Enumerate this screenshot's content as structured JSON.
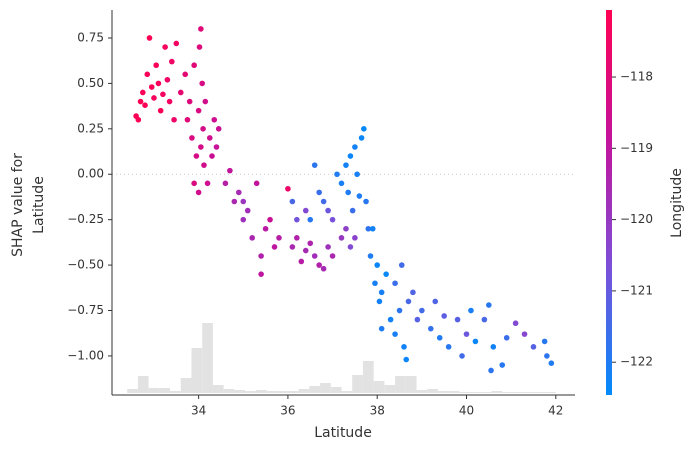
{
  "chart_data": {
    "type": "scatter",
    "xlabel": "Latitude",
    "ylabel": [
      "SHAP value for",
      "Latitude"
    ],
    "colorbar_label": "Longitude",
    "xlim": [
      32.06,
      42.43
    ],
    "ylim": [
      -1.215,
      0.904
    ],
    "xticks": [
      34,
      36,
      38,
      40,
      42
    ],
    "yticks": [
      {
        "value": 0.75,
        "label": "0.75"
      },
      {
        "value": 0.5,
        "label": "0.50"
      },
      {
        "value": 0.25,
        "label": "0.25"
      },
      {
        "value": 0,
        "label": "0.00"
      },
      {
        "value": -0.25,
        "label": "−0.25"
      },
      {
        "value": -0.5,
        "label": "−0.50"
      },
      {
        "value": -0.75,
        "label": "−0.75"
      },
      {
        "value": -1,
        "label": "−1.00"
      }
    ],
    "clim": [
      -122.46,
      -117.06
    ],
    "cticks": [
      {
        "value": -118,
        "label": "−118"
      },
      {
        "value": -119,
        "label": "−119"
      },
      {
        "value": -120,
        "label": "−120"
      },
      {
        "value": -121,
        "label": "−121"
      },
      {
        "value": -122,
        "label": "−122"
      }
    ],
    "colormap": [
      "#008bfb",
      "#7c4fd8",
      "#c4129a",
      "#ff0052"
    ],
    "x": [
      32.6,
      32.7,
      32.75,
      32.8,
      32.85,
      32.9,
      32.95,
      33.0,
      33.05,
      33.1,
      33.15,
      33.2,
      33.25,
      33.3,
      33.35,
      33.4,
      33.45,
      33.5,
      32.65,
      33.6,
      33.7,
      33.75,
      33.8,
      33.85,
      33.9,
      33.95,
      34.0,
      34.02,
      34.05,
      34.05,
      34.08,
      34.1,
      34.12,
      34.15,
      34.2,
      34.25,
      34.3,
      34.35,
      34.4,
      33.9,
      34.0,
      34.45,
      34.6,
      34.7,
      34.8,
      34.9,
      35.0,
      35.1,
      35.3,
      35.2,
      35.4,
      35.5,
      35.6,
      35.7,
      35.8,
      35.4,
      35.0,
      36.0,
      36.1,
      36.2,
      36.3,
      36.4,
      36.5,
      36.6,
      36.7,
      36.8,
      36.9,
      37.0,
      36.1,
      36.2,
      36.4,
      36.6,
      36.7,
      36.8,
      36.9,
      37.0,
      36.5,
      37.1,
      37.2,
      37.3,
      37.35,
      37.4,
      37.45,
      37.5,
      37.55,
      37.6,
      37.65,
      37.7,
      37.75,
      37.5,
      37.4,
      37.3,
      37.2,
      37.8,
      37.85,
      37.9,
      37.95,
      38.0,
      38.05,
      38.1,
      38.2,
      38.3,
      38.4,
      38.5,
      38.55,
      38.6,
      38.65,
      38.7,
      38.8,
      38.9,
      39.0,
      38.4,
      38.1,
      39.2,
      39.3,
      39.4,
      39.5,
      39.6,
      39.8,
      39.9,
      40.1,
      40.2,
      40.4,
      40.5,
      40.55,
      40.6,
      40.8,
      40.9,
      41.1,
      41.3,
      41.5,
      41.8,
      41.9,
      41.75,
      40.0
    ],
    "values": [
      0.32,
      0.4,
      0.45,
      0.38,
      0.55,
      0.75,
      0.48,
      0.42,
      0.6,
      0.5,
      0.35,
      0.44,
      0.7,
      0.52,
      0.4,
      0.62,
      0.3,
      0.72,
      0.3,
      0.45,
      0.55,
      0.3,
      0.4,
      0.2,
      0.6,
      0.1,
      0.35,
      0.7,
      0.8,
      0.15,
      0.5,
      0.25,
      0.05,
      0.4,
      -0.05,
      0.2,
      0.1,
      0.3,
      0.15,
      -0.05,
      -0.1,
      0.25,
      -0.05,
      0.02,
      -0.15,
      -0.1,
      -0.25,
      -0.2,
      -0.05,
      -0.35,
      -0.45,
      -0.3,
      -0.25,
      -0.4,
      -0.35,
      -0.55,
      -0.15,
      -0.08,
      -0.4,
      -0.35,
      -0.48,
      -0.42,
      -0.38,
      -0.45,
      -0.5,
      -0.52,
      -0.4,
      -0.45,
      -0.15,
      -0.25,
      -0.2,
      0.05,
      -0.1,
      -0.15,
      -0.2,
      -0.25,
      -0.25,
      0.0,
      -0.05,
      0.05,
      -0.1,
      0.1,
      -0.2,
      0.15,
      0.0,
      -0.12,
      0.2,
      0.25,
      -0.15,
      -0.35,
      -0.4,
      -0.3,
      -0.35,
      -0.3,
      -0.45,
      -0.3,
      -0.6,
      -0.5,
      -0.7,
      -0.65,
      -0.55,
      -0.8,
      -0.6,
      -0.75,
      -0.5,
      -0.95,
      -1.02,
      -0.7,
      -0.65,
      -0.8,
      -0.75,
      -0.88,
      -0.85,
      -0.85,
      -0.7,
      -0.9,
      -0.78,
      -0.95,
      -0.8,
      -1.0,
      -0.75,
      -0.92,
      -0.8,
      -0.72,
      -1.08,
      -0.95,
      -1.05,
      -0.9,
      -0.82,
      -0.88,
      -0.95,
      -1.0,
      -1.04,
      -0.92,
      -0.88
    ],
    "color_values": [
      -117.2,
      -117.1,
      -117.2,
      -117.1,
      -117.2,
      -117.1,
      -117.2,
      -117.3,
      -117.2,
      -117.3,
      -117.2,
      -117.4,
      -117.3,
      -117.5,
      -117.4,
      -117.5,
      -117.6,
      -117.4,
      -117.1,
      -117.8,
      -117.9,
      -118.0,
      -118.1,
      -118.2,
      -118.0,
      -118.3,
      -118.2,
      -118.1,
      -118.0,
      -118.4,
      -118.3,
      -118.4,
      -118.5,
      -118.5,
      -118.6,
      -118.6,
      -118.7,
      -118.6,
      -118.8,
      -118.2,
      -118.5,
      -118.7,
      -119.2,
      -118.9,
      -119.5,
      -119.6,
      -119.8,
      -119.7,
      -118.9,
      -119.5,
      -119.3,
      -119.1,
      -118.7,
      -119.0,
      -119.2,
      -119.0,
      -119.9,
      -117.6,
      -119.5,
      -119.3,
      -119.2,
      -119.6,
      -119.4,
      -119.7,
      -119.3,
      -119.6,
      -119.8,
      -119.5,
      -121.4,
      -120.8,
      -120.5,
      -121.8,
      -121.6,
      -121.5,
      -120.9,
      -120.7,
      -121.9,
      -122.0,
      -122.1,
      -122.2,
      -122.0,
      -122.3,
      -121.6,
      -122.2,
      -122.1,
      -122.0,
      -122.3,
      -122.4,
      -121.9,
      -120.3,
      -120.5,
      -120.2,
      -120.0,
      -121.8,
      -122.0,
      -122.2,
      -122.1,
      -122.3,
      -122.2,
      -122.1,
      -122.4,
      -122.2,
      -121.6,
      -121.8,
      -121.5,
      -122.2,
      -122.3,
      -121.4,
      -121.3,
      -121.2,
      -121.5,
      -122.1,
      -122.0,
      -121.7,
      -121.3,
      -122.0,
      -121.1,
      -121.9,
      -121.2,
      -121.5,
      -122.1,
      -122.3,
      -121.4,
      -121.9,
      -121.8,
      -122.2,
      -121.9,
      -121.6,
      -120.5,
      -120.4,
      -121.2,
      -121.8,
      -122.0,
      -121.9,
      -120.9
    ],
    "histogram": {
      "color": "#e2e2e2",
      "bins": [
        32.4,
        32.64,
        32.88,
        33.12,
        33.36,
        33.6,
        33.84,
        34.08,
        34.32,
        34.56,
        34.8,
        35.04,
        35.28,
        35.52,
        35.76,
        36.0,
        36.24,
        36.48,
        36.72,
        36.96,
        37.2,
        37.44,
        37.68,
        37.92,
        38.16,
        38.4,
        38.64,
        38.88,
        39.12,
        39.36,
        39.6,
        39.84,
        40.08,
        40.32,
        40.56,
        40.8,
        41.04,
        41.28,
        41.52,
        41.76,
        42.0
      ],
      "counts": [
        4,
        17,
        5,
        5,
        2,
        15,
        45,
        70,
        8,
        4,
        3,
        2,
        3,
        2,
        2,
        2,
        4,
        7,
        10,
        6,
        2,
        18,
        32,
        12,
        8,
        17,
        17,
        3,
        4,
        2,
        2,
        1,
        1,
        1,
        2,
        1,
        1,
        1,
        1,
        1
      ]
    },
    "zero_line": true
  }
}
